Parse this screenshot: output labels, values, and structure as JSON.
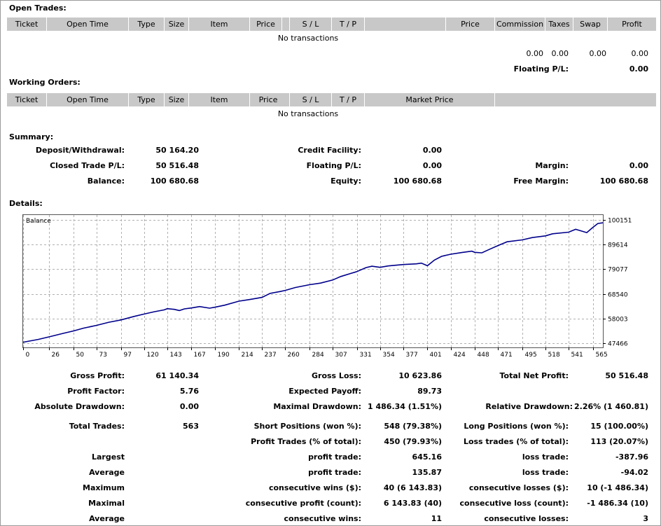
{
  "open_trades": {
    "title": "Open Trades:",
    "columns": [
      "Ticket",
      "Open Time",
      "Type",
      "Size",
      "Item",
      "Price",
      "S / L",
      "T / P",
      "",
      "Price",
      "Commission",
      "Taxes",
      "Swap",
      "Profit"
    ],
    "empty": "No transactions",
    "totals": {
      "commission": "0.00",
      "taxes": "0.00",
      "swap": "0.00",
      "profit": "0.00"
    },
    "floating_label": "Floating P/L:",
    "floating_value": "0.00"
  },
  "working_orders": {
    "title": "Working Orders:",
    "columns": [
      "Ticket",
      "Open Time",
      "Type",
      "Size",
      "Item",
      "Price",
      "S / L",
      "T / P",
      "Market Price",
      ""
    ],
    "empty": "No transactions"
  },
  "summary": {
    "title": "Summary:",
    "deposit_label": "Deposit/Withdrawal:",
    "deposit_value": "50 164.20",
    "credit_label": "Credit Facility:",
    "credit_value": "0.00",
    "closed_label": "Closed Trade P/L:",
    "closed_value": "50 516.48",
    "floating_label": "Floating P/L:",
    "floating_value": "0.00",
    "margin_label": "Margin:",
    "margin_value": "0.00",
    "balance_label": "Balance:",
    "balance_value": "100 680.68",
    "equity_label": "Equity:",
    "equity_value": "100 680.68",
    "free_margin_label": "Free Margin:",
    "free_margin_value": "100 680.68"
  },
  "details": {
    "title": "Details:",
    "gross_profit_label": "Gross Profit:",
    "gross_profit_value": "61 140.34",
    "gross_loss_label": "Gross Loss:",
    "gross_loss_value": "10 623.86",
    "total_net_label": "Total Net Profit:",
    "total_net_value": "50 516.48",
    "profit_factor_label": "Profit Factor:",
    "profit_factor_value": "5.76",
    "expected_payoff_label": "Expected Payoff:",
    "expected_payoff_value": "89.73",
    "abs_dd_label": "Absolute Drawdown:",
    "abs_dd_value": "0.00",
    "max_dd_label": "Maximal Drawdown:",
    "max_dd_value": "1 486.34 (1.51%)",
    "rel_dd_label": "Relative Drawdown:",
    "rel_dd_value": "2.26% (1 460.81)",
    "total_trades_label": "Total Trades:",
    "total_trades_value": "563",
    "short_label": "Short Positions (won %):",
    "short_value": "548 (79.38%)",
    "long_label": "Long Positions (won %):",
    "long_value": "15 (100.00%)",
    "profit_trades_label": "Profit Trades (% of total):",
    "profit_trades_value": "450 (79.93%)",
    "loss_trades_label": "Loss trades (% of total):",
    "loss_trades_value": "113 (20.07%)",
    "largest_label": "Largest",
    "largest_profit_label": "profit trade:",
    "largest_profit_value": "645.16",
    "largest_loss_label": "loss trade:",
    "largest_loss_value": "-387.96",
    "average_label": "Average",
    "avg_profit_label": "profit trade:",
    "avg_profit_value": "135.87",
    "avg_loss_label": "loss trade:",
    "avg_loss_value": "-94.02",
    "maximum_label": "Maximum",
    "max_cw_label": "consecutive wins ($):",
    "max_cw_value": "40 (6 143.83)",
    "max_cl_label": "consecutive losses ($):",
    "max_cl_value": "10 (-1 486.34)",
    "maximal_label": "Maximal",
    "maximal_cp_label": "consecutive profit (count):",
    "maximal_cp_value": "6 143.83 (40)",
    "maximal_cl_label": "consecutive loss (count):",
    "maximal_cl_value": "-1 486.34 (10)",
    "average2_label": "Average",
    "avg_cw_label": "consecutive wins:",
    "avg_cw_value": "11",
    "avg_cl_label": "consecutive losses:",
    "avg_cl_value": "3"
  },
  "chart_data": {
    "type": "line",
    "title": "Balance",
    "x_ticks": [
      0,
      26,
      50,
      73,
      97,
      120,
      143,
      167,
      190,
      214,
      237,
      260,
      284,
      307,
      331,
      354,
      377,
      401,
      424,
      448,
      471,
      495,
      518,
      541,
      565
    ],
    "y_ticks": [
      47466,
      58003,
      68540,
      79077,
      89614,
      100151
    ],
    "xlim": [
      0,
      575
    ],
    "ylim": [
      45800,
      102200
    ],
    "grid": true,
    "color": "#00008b",
    "series": [
      {
        "values": [
          [
            0,
            48000
          ],
          [
            15,
            49200
          ],
          [
            26,
            50300
          ],
          [
            40,
            51800
          ],
          [
            50,
            52800
          ],
          [
            60,
            54000
          ],
          [
            73,
            55200
          ],
          [
            85,
            56500
          ],
          [
            97,
            57500
          ],
          [
            110,
            59000
          ],
          [
            120,
            60000
          ],
          [
            130,
            61000
          ],
          [
            140,
            61800
          ],
          [
            143,
            62300
          ],
          [
            150,
            62000
          ],
          [
            155,
            61500
          ],
          [
            160,
            62200
          ],
          [
            167,
            62600
          ],
          [
            175,
            63200
          ],
          [
            185,
            62500
          ],
          [
            190,
            62900
          ],
          [
            200,
            63800
          ],
          [
            214,
            65500
          ],
          [
            225,
            66200
          ],
          [
            237,
            67100
          ],
          [
            245,
            68800
          ],
          [
            255,
            69600
          ],
          [
            260,
            70100
          ],
          [
            270,
            71300
          ],
          [
            284,
            72500
          ],
          [
            295,
            73200
          ],
          [
            307,
            74500
          ],
          [
            315,
            76000
          ],
          [
            325,
            77300
          ],
          [
            331,
            78100
          ],
          [
            340,
            79800
          ],
          [
            346,
            80400
          ],
          [
            354,
            79900
          ],
          [
            362,
            80500
          ],
          [
            377,
            81100
          ],
          [
            390,
            81400
          ],
          [
            395,
            81700
          ],
          [
            401,
            80600
          ],
          [
            408,
            83000
          ],
          [
            415,
            84600
          ],
          [
            424,
            85500
          ],
          [
            435,
            86200
          ],
          [
            445,
            86800
          ],
          [
            448,
            86300
          ],
          [
            455,
            86100
          ],
          [
            462,
            87500
          ],
          [
            471,
            89200
          ],
          [
            480,
            90800
          ],
          [
            495,
            91600
          ],
          [
            505,
            92600
          ],
          [
            518,
            93300
          ],
          [
            525,
            94200
          ],
          [
            541,
            94900
          ],
          [
            548,
            96100
          ],
          [
            553,
            95500
          ],
          [
            559,
            94700
          ],
          [
            565,
            96900
          ],
          [
            570,
            98600
          ],
          [
            575,
            98900
          ]
        ]
      }
    ]
  }
}
